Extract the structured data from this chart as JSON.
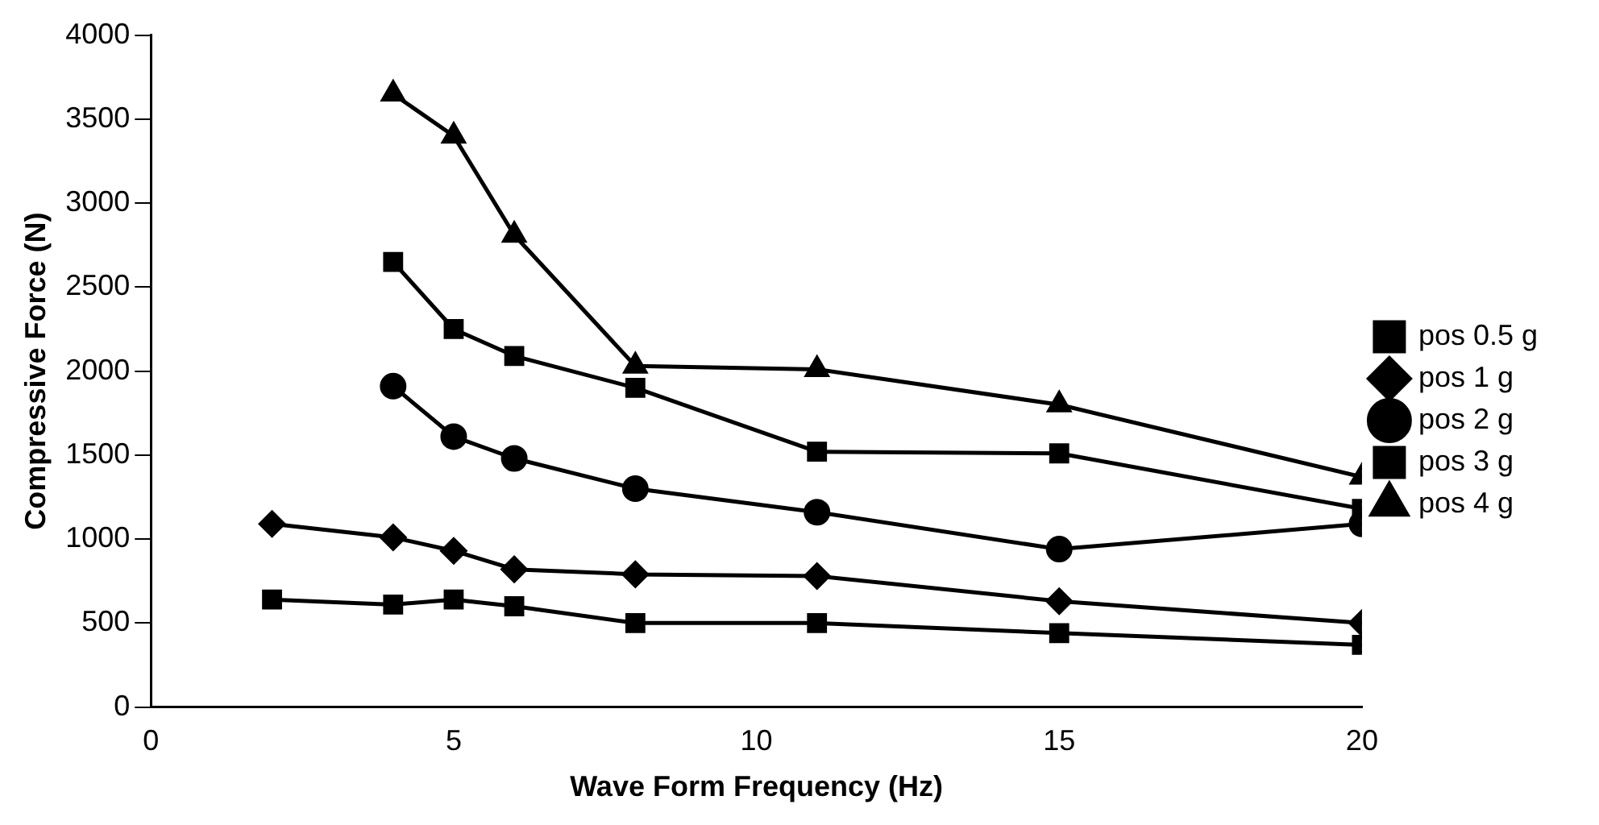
{
  "chart_data": {
    "type": "line",
    "xlabel": "Wave Form Frequency (Hz)",
    "ylabel": "Compressive Force (N)",
    "x": [
      2,
      4,
      5,
      6,
      8,
      11,
      15,
      20
    ],
    "series": [
      {
        "name": "pos 0.5 g",
        "color": "#000000",
        "marker": "square",
        "values": [
          640,
          610,
          640,
          600,
          500,
          500,
          440,
          370
        ]
      },
      {
        "name": "pos 1 g",
        "color": "#000000",
        "marker": "diamond",
        "values": [
          1090,
          1010,
          930,
          820,
          790,
          780,
          630,
          500
        ]
      },
      {
        "name": "pos 2 g",
        "color": "#000000",
        "marker": "circle",
        "values": [
          null,
          1910,
          1610,
          1480,
          1300,
          1160,
          940,
          1090
        ]
      },
      {
        "name": "pos 3 g",
        "color": "#000000",
        "marker": "square",
        "values": [
          null,
          2650,
          2250,
          2090,
          1900,
          1520,
          1510,
          1180
        ]
      },
      {
        "name": "pos 4 g",
        "color": "#000000",
        "marker": "triangle",
        "values": [
          null,
          3650,
          3400,
          2810,
          2030,
          2010,
          1800,
          1370
        ]
      }
    ],
    "xlim": [
      0,
      20
    ],
    "xticks": [
      0,
      5,
      10,
      15,
      20
    ],
    "ylim": [
      0,
      4000
    ],
    "yticks": [
      0,
      500,
      1000,
      1500,
      2000,
      2500,
      3000,
      3500,
      4000
    ],
    "grid": false,
    "legend": "right",
    "line_style": "solid"
  }
}
